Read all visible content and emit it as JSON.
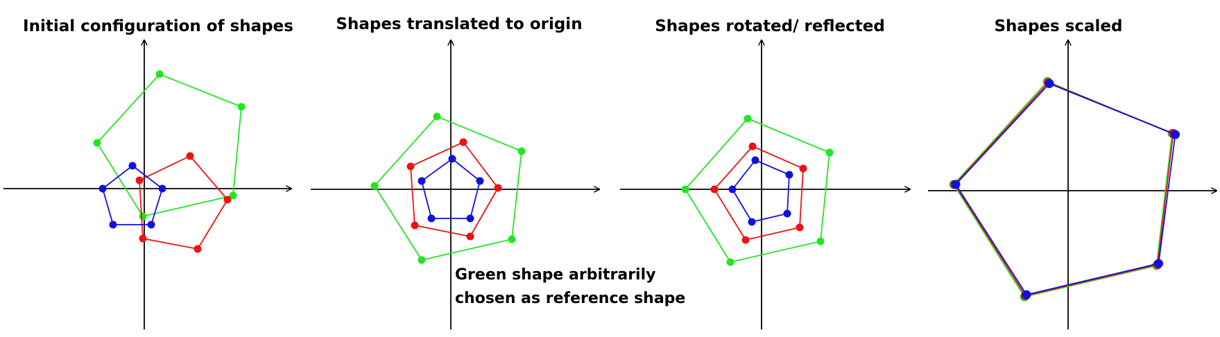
{
  "colors": {
    "green": "#22e622",
    "red": "#ee1111",
    "blue": "#1111dd",
    "axis": "#000000"
  },
  "note": {
    "line1": "Green shape arbitrarily",
    "line2": "chosen as reference shape"
  },
  "panels": [
    {
      "id": "initial",
      "title": "Initial configuration of shapes",
      "shapes": [
        {
          "color": "green",
          "points": [
            [
              0.22,
              1.65
            ],
            [
              1.4,
              1.18
            ],
            [
              1.28,
              -0.1
            ],
            [
              -0.02,
              -0.4
            ],
            [
              -0.68,
              0.66
            ]
          ]
        },
        {
          "color": "red",
          "points": [
            [
              0.66,
              0.47
            ],
            [
              1.2,
              -0.16
            ],
            [
              0.77,
              -0.87
            ],
            [
              -0.02,
              -0.72
            ],
            [
              -0.07,
              0.12
            ]
          ]
        },
        {
          "color": "blue",
          "points": [
            [
              -0.17,
              0.33
            ],
            [
              0.26,
              0.0
            ],
            [
              0.1,
              -0.52
            ],
            [
              -0.45,
              -0.52
            ],
            [
              -0.6,
              0.0
            ]
          ]
        }
      ]
    },
    {
      "id": "translated",
      "title": "Shapes translated to origin",
      "shapes": [
        {
          "color": "green",
          "points": [
            [
              -0.2,
              1.05
            ],
            [
              1.02,
              0.55
            ],
            [
              0.88,
              -0.72
            ],
            [
              -0.42,
              -1.02
            ],
            [
              -1.1,
              0.05
            ]
          ]
        },
        {
          "color": "red",
          "points": [
            [
              0.18,
              0.68
            ],
            [
              0.68,
              0.02
            ],
            [
              0.28,
              -0.68
            ],
            [
              -0.52,
              -0.52
            ],
            [
              -0.58,
              0.33
            ]
          ]
        },
        {
          "color": "blue",
          "points": [
            [
              0.02,
              0.44
            ],
            [
              0.42,
              0.12
            ],
            [
              0.28,
              -0.42
            ],
            [
              -0.28,
              -0.42
            ],
            [
              -0.42,
              0.12
            ]
          ]
        }
      ]
    },
    {
      "id": "rotated",
      "title": "Shapes rotated/ reflected",
      "shapes": [
        {
          "color": "green",
          "points": [
            [
              -0.2,
              1.02
            ],
            [
              0.98,
              0.53
            ],
            [
              0.85,
              -0.75
            ],
            [
              -0.45,
              -1.05
            ],
            [
              -1.1,
              0.0
            ]
          ]
        },
        {
          "color": "red",
          "points": [
            [
              -0.13,
              0.62
            ],
            [
              0.6,
              0.3
            ],
            [
              0.55,
              -0.55
            ],
            [
              -0.23,
              -0.73
            ],
            [
              -0.68,
              0.0
            ]
          ]
        },
        {
          "color": "blue",
          "points": [
            [
              -0.09,
              0.42
            ],
            [
              0.4,
              0.21
            ],
            [
              0.37,
              -0.35
            ],
            [
              -0.14,
              -0.47
            ],
            [
              -0.42,
              0.0
            ]
          ]
        }
      ]
    },
    {
      "id": "scaled",
      "title": "Shapes scaled",
      "shapes": [
        {
          "color": "green",
          "points": [
            [
              -0.2,
              1.05
            ],
            [
              1.0,
              0.55
            ],
            [
              0.85,
              -0.72
            ],
            [
              -0.42,
              -1.02
            ],
            [
              -1.1,
              0.06
            ]
          ]
        },
        {
          "color": "red",
          "points": [
            [
              -0.19,
              1.04
            ],
            [
              1.01,
              0.55
            ],
            [
              0.86,
              -0.71
            ],
            [
              -0.41,
              -1.01
            ],
            [
              -1.09,
              0.06
            ]
          ]
        },
        {
          "color": "blue",
          "points": [
            [
              -0.18,
              1.03
            ],
            [
              1.03,
              0.54
            ],
            [
              0.87,
              -0.7
            ],
            [
              -0.4,
              -1.0
            ],
            [
              -1.08,
              0.06
            ]
          ]
        }
      ]
    }
  ]
}
